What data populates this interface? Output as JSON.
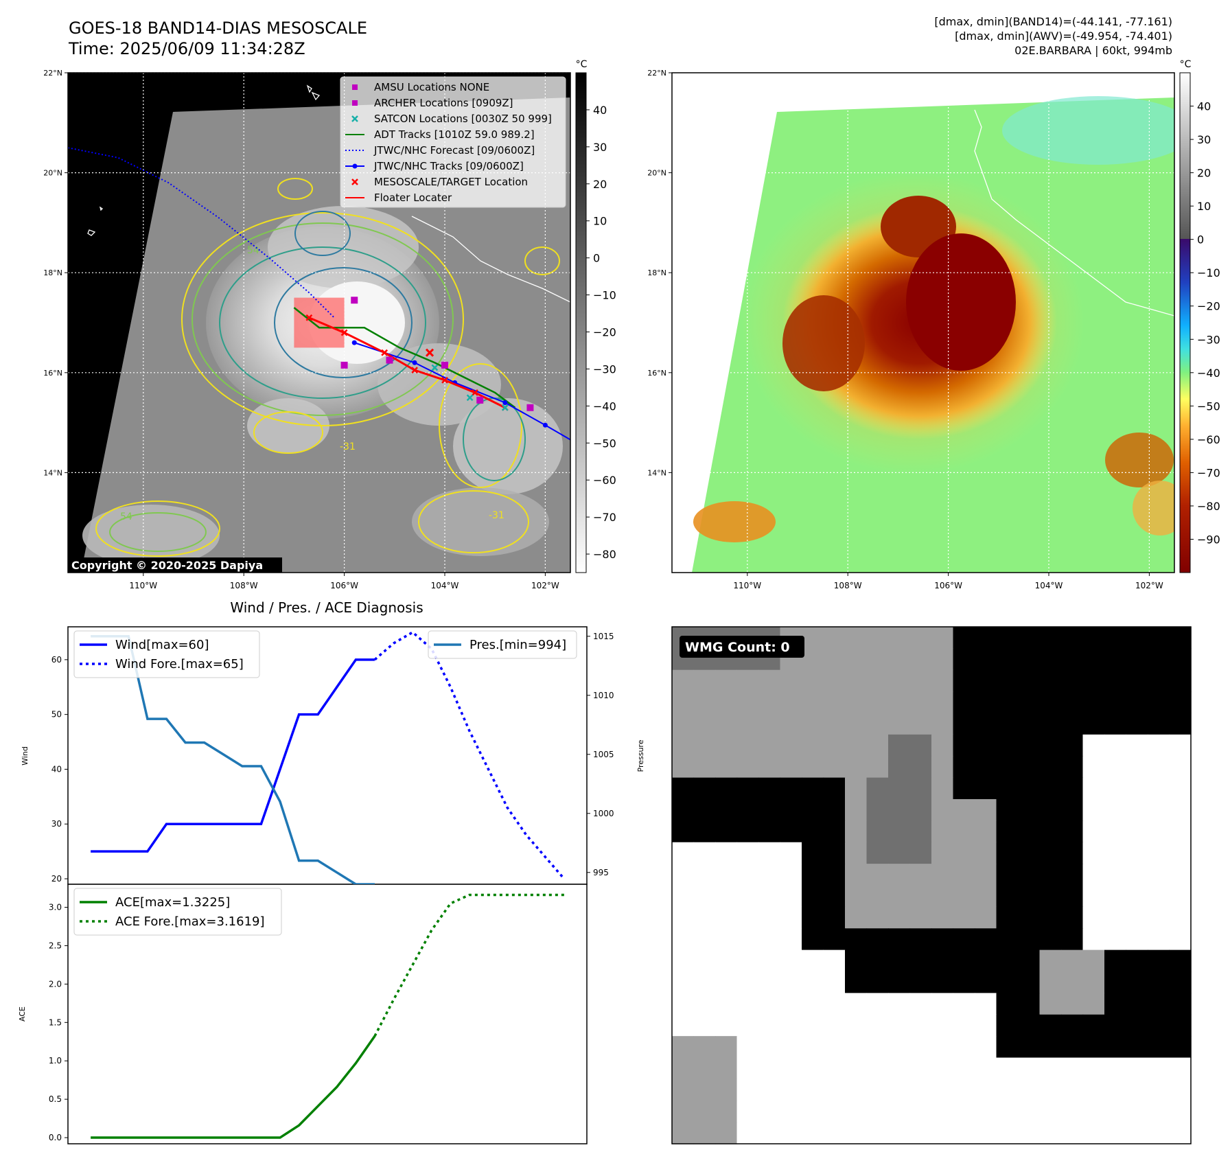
{
  "header": {
    "title": "GOES-18 BAND14-DIAS MESOSCALE",
    "time": "Time: 2025/06/09 11:34:28Z",
    "stats_band14": "[dmax, dmin](BAND14)=(-44.141, -77.161)",
    "stats_awv": "[dmax, dmin](AWV)=(-49.954, -74.401)",
    "storm": "02E.BARBARA | 60kt, 994mb"
  },
  "map_axes": {
    "lat_ticks": [
      "22°N",
      "20°N",
      "18°N",
      "16°N",
      "14°N"
    ],
    "lat_values": [
      22,
      20,
      18,
      16,
      14
    ],
    "lon_ticks": [
      "110°W",
      "108°W",
      "106°W",
      "104°W",
      "102°W"
    ],
    "lon_values": [
      -110,
      -108,
      -106,
      -104,
      -102
    ],
    "lon_range": [
      -111.5,
      -101.5
    ],
    "lat_range": [
      12,
      22
    ]
  },
  "colorbar_left": {
    "unit": "°C",
    "ticks": [
      "40",
      "30",
      "20",
      "10",
      "0",
      "−10",
      "−20",
      "−30",
      "−40",
      "−50",
      "−60",
      "−70",
      "−80"
    ],
    "tick_values": [
      40,
      30,
      20,
      10,
      0,
      -10,
      -20,
      -30,
      -40,
      -50,
      -60,
      -70,
      -80
    ],
    "range": [
      -85,
      50
    ]
  },
  "colorbar_right": {
    "unit": "°C",
    "ticks": [
      "40",
      "30",
      "20",
      "10",
      "0",
      "−10",
      "−20",
      "−30",
      "−40",
      "−50",
      "−60",
      "−70",
      "−80",
      "−90"
    ],
    "tick_values": [
      40,
      30,
      20,
      10,
      0,
      -10,
      -20,
      -30,
      -40,
      -50,
      -60,
      -70,
      -80,
      -90
    ],
    "range": [
      -100,
      50
    ]
  },
  "legend": {
    "items": [
      {
        "label": "AMSU Locations NONE",
        "marker": "square",
        "color": "#c000c0"
      },
      {
        "label": "ARCHER Locations [0909Z]",
        "marker": "square",
        "color": "#c000c0"
      },
      {
        "label": "SATCON Locations [0030Z 50 999]",
        "marker": "x",
        "color": "#17b0a8"
      },
      {
        "label": "ADT Tracks [1010Z 59.0 989.2]",
        "marker": "line",
        "color": "#008000"
      },
      {
        "label": "JTWC/NHC Forecast [09/0600Z]",
        "marker": "dotted",
        "color": "#0000ff"
      },
      {
        "label": "JTWC/NHC Tracks [09/0600Z]",
        "marker": "line-dot",
        "color": "#0000ff"
      },
      {
        "label": "MESOSCALE/TARGET Location",
        "marker": "x",
        "color": "#ff0000"
      },
      {
        "label": "Floater Locater",
        "marker": "line",
        "color": "#ff0000"
      }
    ]
  },
  "copyright": "Copyright © 2020-2025 Dapiya",
  "contour_labels": [
    "54",
    "-31",
    "-31",
    "54"
  ],
  "tracks": {
    "forecast": [
      [
        -111.5,
        20.5
      ],
      [
        -110.5,
        20.3
      ],
      [
        -109.5,
        19.8
      ],
      [
        -108.5,
        19.1
      ],
      [
        -107.5,
        18.3
      ],
      [
        -106.7,
        17.6
      ],
      [
        -106.2,
        17.1
      ]
    ],
    "jtwc": [
      [
        -105.8,
        16.6
      ],
      [
        -104.6,
        16.2
      ],
      [
        -103.8,
        15.8
      ],
      [
        -102.8,
        15.4
      ],
      [
        -102.0,
        14.95
      ],
      [
        -101.4,
        14.6
      ]
    ],
    "adt": [
      [
        -107.0,
        17.3
      ],
      [
        -106.5,
        16.9
      ],
      [
        -105.6,
        16.9
      ],
      [
        -104.9,
        16.5
      ],
      [
        -104.2,
        16.2
      ],
      [
        -103.6,
        15.9
      ],
      [
        -103.0,
        15.6
      ],
      [
        -102.6,
        15.3
      ]
    ],
    "floater": [
      [
        -106.7,
        17.1
      ],
      [
        -106.0,
        16.8
      ],
      [
        -105.2,
        16.4
      ],
      [
        -104.6,
        16.05
      ],
      [
        -104.0,
        15.85
      ],
      [
        -103.4,
        15.6
      ],
      [
        -102.8,
        15.3
      ]
    ],
    "archer": [
      [
        -105.8,
        17.45
      ],
      [
        -106.0,
        16.15
      ],
      [
        -105.1,
        16.25
      ],
      [
        -104.0,
        16.15
      ],
      [
        -103.3,
        15.45
      ],
      [
        -102.3,
        15.3
      ]
    ],
    "satcon": [
      [
        -104.2,
        16.1
      ],
      [
        -103.5,
        15.5
      ],
      [
        -102.8,
        15.3
      ]
    ],
    "target": [
      [
        -104.3,
        16.4
      ]
    ],
    "target_box": {
      "lon": [
        -107.0,
        -106.0
      ],
      "lat": [
        16.5,
        17.5
      ]
    }
  },
  "wmg": {
    "label": "WMG Count: 0",
    "grid_cols": 24,
    "grid_rows": 24,
    "legend_note": ""
  },
  "chart_data": [
    {
      "type": "line",
      "title": "Wind / Pres. / ACE Diagnosis",
      "x": [
        0,
        1,
        2,
        3,
        4,
        5,
        6,
        7,
        8,
        9,
        10,
        11,
        12,
        13,
        14,
        15,
        16,
        17,
        18,
        19,
        20,
        21,
        22,
        23,
        24,
        25
      ],
      "ylabel": "Wind",
      "ylabel_right": "Pressure",
      "ylim": [
        19,
        66
      ],
      "ylim_right": [
        994,
        1015.8
      ],
      "yticks": [
        20,
        30,
        40,
        50,
        60
      ],
      "yticks_right": [
        995,
        1000,
        1005,
        1010,
        1015
      ],
      "series": [
        {
          "name": "Wind[max=60]",
          "axis": "left",
          "style": "solid",
          "color": "#0000ff",
          "x": [
            0,
            1,
            2,
            3,
            4,
            5,
            6,
            7,
            8,
            9,
            10,
            11,
            12,
            13,
            14,
            15
          ],
          "values": [
            25,
            25,
            25,
            25,
            30,
            30,
            30,
            30,
            30,
            30,
            40,
            50,
            50,
            55,
            60,
            60
          ]
        },
        {
          "name": "Wind Fore.[max=65]",
          "axis": "left",
          "style": "dotted",
          "color": "#0000ff",
          "x": [
            15,
            16,
            17,
            18,
            19,
            20,
            21,
            22,
            23,
            24,
            25
          ],
          "values": [
            60,
            63,
            65,
            62,
            55,
            47,
            40,
            33,
            28,
            24,
            20
          ]
        },
        {
          "name": "Pres.[min=994]",
          "axis": "right",
          "style": "solid",
          "color": "#1f77b4",
          "x": [
            0,
            1,
            2,
            3,
            4,
            5,
            6,
            7,
            8,
            9,
            10,
            11,
            12,
            13,
            14,
            15
          ],
          "values": [
            1015,
            1015,
            1015,
            1008,
            1008,
            1006,
            1006,
            1005,
            1004,
            1004,
            1001,
            996,
            996,
            995,
            994,
            994
          ]
        }
      ],
      "legend_left": "top-left",
      "legend_right": "top-right"
    },
    {
      "type": "line",
      "ylabel": "ACE",
      "x": [
        0,
        1,
        2,
        3,
        4,
        5,
        6,
        7,
        8,
        9,
        10,
        11,
        12,
        13,
        14,
        15,
        16,
        17,
        18,
        19,
        20,
        21,
        22,
        23,
        24,
        25
      ],
      "ylim": [
        -0.08,
        3.3
      ],
      "yticks": [
        "0.0",
        "0.5",
        "1.0",
        "1.5",
        "2.0",
        "2.5",
        "3.0"
      ],
      "ytick_values": [
        0,
        0.5,
        1,
        1.5,
        2,
        2.5,
        3
      ],
      "series": [
        {
          "name": "ACE[max=1.3225]",
          "style": "solid",
          "color": "#008000",
          "x": [
            0,
            1,
            2,
            3,
            4,
            5,
            6,
            7,
            8,
            9,
            10,
            11,
            12,
            13,
            14,
            15
          ],
          "values": [
            0,
            0,
            0,
            0,
            0,
            0,
            0,
            0,
            0,
            0,
            0,
            0.16,
            0.41,
            0.66,
            0.97,
            1.3225
          ]
        },
        {
          "name": "ACE Fore.[max=3.1619]",
          "style": "dotted",
          "color": "#008000",
          "x": [
            15,
            16,
            17,
            18,
            19,
            20,
            21,
            22,
            23,
            24,
            25
          ],
          "values": [
            1.3225,
            1.8,
            2.25,
            2.7,
            3.05,
            3.1619,
            3.1619,
            3.1619,
            3.1619,
            3.1619,
            3.1619
          ]
        }
      ],
      "legend": "top-left"
    }
  ]
}
